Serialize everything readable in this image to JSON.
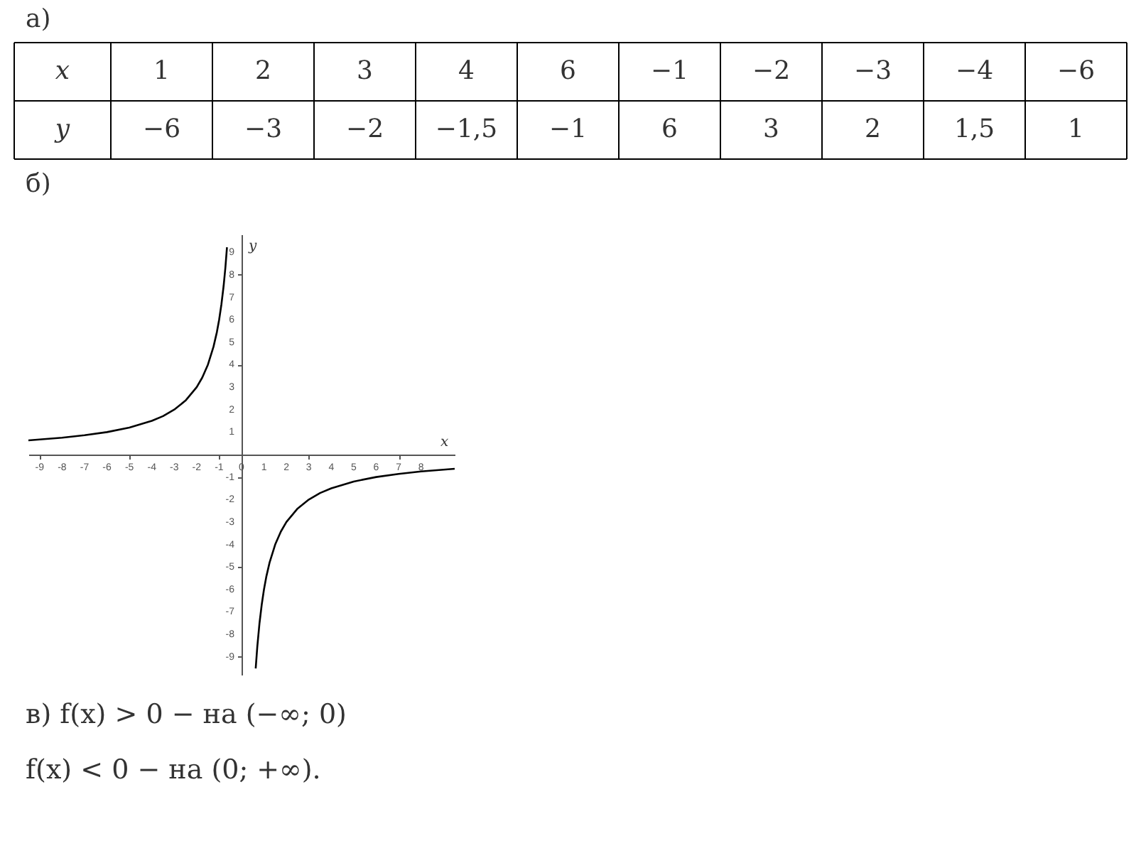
{
  "chart_data": {
    "type": "line",
    "xlabel": "x",
    "ylabel": "y",
    "xlim": [
      -9.5,
      9.5
    ],
    "ylim": [
      -9.8,
      9.8
    ],
    "xticks": [
      -9,
      -8,
      -7,
      -6,
      -5,
      -4,
      -3,
      -2,
      -1,
      {
        "value": 0,
        "label": "0"
      },
      1,
      2,
      3,
      4,
      5,
      6,
      7,
      8
    ],
    "yticks": [
      -9,
      -8,
      -7,
      -6,
      -5,
      -4,
      -3,
      -2,
      -1,
      1,
      2,
      3,
      4,
      5,
      6,
      7,
      8,
      9
    ],
    "grid": false,
    "marker": "none",
    "line_style": "solid",
    "series": [
      {
        "color": "#000000",
        "x": [
          -9.5,
          -9,
          -8,
          -7,
          -6,
          -5,
          -4,
          -3.5,
          -3,
          -2.5,
          -2,
          -1.75,
          -1.5,
          -1.25,
          -1.1,
          -1,
          -0.9,
          -0.8,
          -0.72,
          -0.65
        ],
        "values": [
          0.63,
          0.67,
          0.75,
          0.86,
          1,
          1.2,
          1.5,
          1.71,
          2,
          2.4,
          3,
          3.43,
          4,
          4.8,
          5.45,
          6,
          6.67,
          7.5,
          8.33,
          9.23
        ]
      },
      {
        "color": "#000000",
        "x": [
          0.63,
          0.7,
          0.8,
          0.9,
          1,
          1.1,
          1.25,
          1.5,
          1.75,
          2,
          2.5,
          3,
          3.5,
          4,
          5,
          6,
          7,
          8,
          9,
          9.5
        ],
        "values": [
          -9.52,
          -8.57,
          -7.5,
          -6.67,
          -6,
          -5.45,
          -4.8,
          -4,
          -3.43,
          -3,
          -2.4,
          -2,
          -1.71,
          -1.5,
          -1.2,
          -1,
          -0.86,
          -0.75,
          -0.67,
          -0.63
        ]
      }
    ],
    "annotations": [
      "а)",
      "x",
      "1",
      "2",
      "3",
      "4",
      "6",
      "−1",
      "−2",
      "−3",
      "−4",
      "−6",
      "y",
      "−6",
      "−3",
      "−2",
      "−1,5",
      "−1",
      "6",
      "3",
      "2",
      "1,5",
      "1",
      "б)",
      "в) f(x) > 0 − на (−∞; 0)",
      "f(x) < 0 − на (0; +∞)."
    ]
  }
}
